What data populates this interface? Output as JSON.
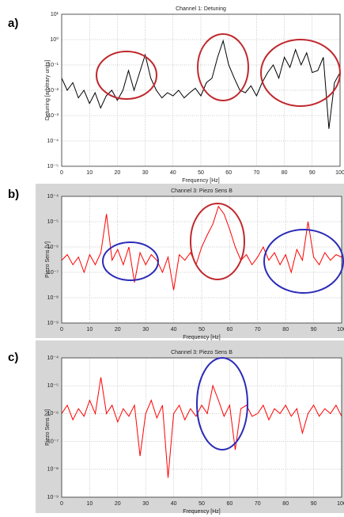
{
  "chart_data": [
    {
      "type": "line",
      "panel_label": "a)",
      "title": "Channel 1: Detuning",
      "xlabel": "Frequency [Hz]",
      "ylabel": "Detuning [arbitrary units]",
      "color": "#000000",
      "log_y": true,
      "grid": true,
      "x": [
        0,
        2,
        4,
        6,
        8,
        10,
        12,
        14,
        16,
        18,
        20,
        22,
        24,
        26,
        28,
        30,
        32,
        34,
        36,
        38,
        40,
        42,
        44,
        46,
        48,
        50,
        52,
        54,
        56,
        58,
        60,
        62,
        64,
        66,
        68,
        70,
        72,
        74,
        76,
        78,
        80,
        82,
        84,
        86,
        88,
        90,
        92,
        94,
        96,
        98,
        100
      ],
      "values": [
        0.03,
        0.01,
        0.02,
        0.005,
        0.01,
        0.003,
        0.008,
        0.002,
        0.006,
        0.01,
        0.004,
        0.01,
        0.06,
        0.01,
        0.05,
        0.25,
        0.03,
        0.01,
        0.005,
        0.008,
        0.006,
        0.01,
        0.005,
        0.008,
        0.012,
        0.006,
        0.02,
        0.03,
        0.2,
        0.9,
        0.1,
        0.03,
        0.01,
        0.008,
        0.015,
        0.006,
        0.02,
        0.05,
        0.1,
        0.03,
        0.2,
        0.08,
        0.4,
        0.1,
        0.3,
        0.05,
        0.06,
        0.2,
        0.0003,
        0.02,
        0.05
      ],
      "xlim": [
        0,
        100
      ],
      "xticks": [
        0,
        10,
        20,
        30,
        40,
        50,
        60,
        70,
        80,
        90,
        100
      ],
      "ylim": [
        1e-05,
        10
      ],
      "yticks": [
        {
          "value": 1e-05,
          "label": "10⁻⁵"
        },
        {
          "value": 0.0001,
          "label": "10⁻⁴"
        },
        {
          "value": 0.001,
          "label": "10⁻³"
        },
        {
          "value": 0.01,
          "label": "10⁻²"
        },
        {
          "value": 0.1,
          "label": "10⁻¹"
        },
        {
          "value": 1,
          "label": "10⁰"
        },
        {
          "value": 10,
          "label": "10¹"
        }
      ]
    },
    {
      "type": "line",
      "panel_label": "b)",
      "title": "Channel 3: Piezo Sens B",
      "xlabel": "Frequency [Hz]",
      "ylabel": "Piezo Sens [V]",
      "color": "#ff0000",
      "log_y": true,
      "grid": true,
      "x": [
        0,
        2,
        4,
        6,
        8,
        10,
        12,
        14,
        16,
        18,
        20,
        22,
        24,
        26,
        28,
        30,
        32,
        34,
        36,
        38,
        40,
        42,
        44,
        46,
        48,
        50,
        52,
        54,
        56,
        58,
        60,
        62,
        64,
        66,
        68,
        70,
        72,
        74,
        76,
        78,
        80,
        82,
        84,
        86,
        88,
        90,
        92,
        94,
        96,
        98,
        100
      ],
      "values": [
        3e-07,
        5e-07,
        2e-07,
        4e-07,
        1e-07,
        5e-07,
        2e-07,
        6e-07,
        2e-05,
        3e-07,
        8e-07,
        2e-07,
        1e-06,
        4e-08,
        6e-07,
        2e-07,
        5e-07,
        3e-07,
        1e-07,
        4e-07,
        2e-08,
        5e-07,
        3e-07,
        6e-07,
        2e-07,
        1e-06,
        3e-06,
        8e-06,
        4e-05,
        2e-05,
        5e-06,
        1e-06,
        3e-07,
        5e-07,
        2e-07,
        4e-07,
        1e-06,
        3e-07,
        6e-07,
        2e-07,
        5e-07,
        1e-07,
        8e-07,
        3e-07,
        1e-05,
        4e-07,
        2e-07,
        6e-07,
        3e-07,
        5e-07,
        4e-07
      ],
      "xlim": [
        0,
        100
      ],
      "xticks": [
        0,
        10,
        20,
        30,
        40,
        50,
        60,
        70,
        80,
        90,
        100
      ],
      "ylim": [
        1e-09,
        0.0001
      ],
      "yticks": [
        {
          "value": 1e-09,
          "label": "10⁻⁹"
        },
        {
          "value": 1e-08,
          "label": "10⁻⁸"
        },
        {
          "value": 1e-07,
          "label": "10⁻⁷"
        },
        {
          "value": 1e-06,
          "label": "10⁻⁶"
        },
        {
          "value": 1e-05,
          "label": "10⁻⁵"
        },
        {
          "value": 0.0001,
          "label": "10⁻⁴"
        }
      ]
    },
    {
      "type": "line",
      "panel_label": "c)",
      "title": "Channel 3: Piezo Sens B",
      "xlabel": "Frequency [Hz]",
      "ylabel": "Piezo Sens [V]",
      "color": "#ff0000",
      "log_y": true,
      "grid": true,
      "x": [
        0,
        2,
        4,
        6,
        8,
        10,
        12,
        14,
        16,
        18,
        20,
        22,
        24,
        26,
        28,
        30,
        32,
        34,
        36,
        38,
        40,
        42,
        44,
        46,
        48,
        50,
        52,
        54,
        56,
        58,
        60,
        62,
        64,
        66,
        68,
        70,
        72,
        74,
        76,
        78,
        80,
        82,
        84,
        86,
        88,
        90,
        92,
        94,
        96,
        98,
        100
      ],
      "values": [
        1e-06,
        2e-06,
        6e-07,
        1.5e-06,
        8e-07,
        3e-06,
        1e-06,
        2e-05,
        1e-06,
        2e-06,
        5e-07,
        1.5e-06,
        8e-07,
        2e-06,
        3e-08,
        1e-06,
        3e-06,
        7e-07,
        2e-06,
        5e-09,
        1e-06,
        2e-06,
        6e-07,
        1.5e-06,
        8e-07,
        2e-06,
        1e-06,
        1e-05,
        3e-06,
        8e-07,
        2e-06,
        5e-08,
        1.5e-06,
        2e-06,
        8e-07,
        1e-06,
        2e-06,
        6e-07,
        1.5e-06,
        1e-06,
        2e-06,
        8e-07,
        1.5e-06,
        2e-07,
        1e-06,
        2e-06,
        8e-07,
        1.5e-06,
        1e-06,
        2e-06,
        8e-07
      ],
      "xlim": [
        0,
        100
      ],
      "xticks": [
        0,
        10,
        20,
        30,
        40,
        50,
        60,
        70,
        80,
        90,
        100
      ],
      "ylim": [
        1e-09,
        0.0001
      ],
      "yticks": [
        {
          "value": 1e-09,
          "label": "10⁻⁹"
        },
        {
          "value": 1e-08,
          "label": "10⁻⁸"
        },
        {
          "value": 1e-07,
          "label": "10⁻⁷"
        },
        {
          "value": 1e-06,
          "label": "10⁻⁶"
        },
        {
          "value": 1e-05,
          "label": "10⁻⁵"
        },
        {
          "value": 0.0001,
          "label": "10⁻⁴"
        }
      ]
    }
  ]
}
